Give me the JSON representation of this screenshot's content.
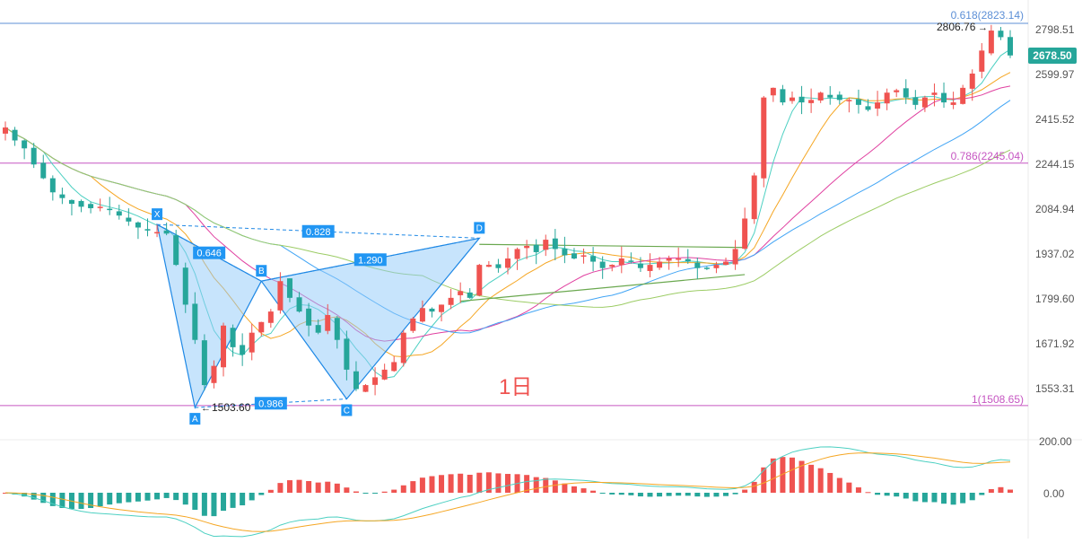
{
  "colors": {
    "up": "#ef5350",
    "down": "#26a69a",
    "harmonic_fill": "#90caf9",
    "harmonic_line": "#1e88e5",
    "fib_top": "#5c8fd6",
    "fib_mid": "#c656c2",
    "fib_bottom": "#c656c2",
    "ma_fast": "#4dd0c2",
    "ma_mid": "#f5a623",
    "ma_slow": "#e040a0",
    "ma_slower": "#42a5f5",
    "ma_slowest": "#9ccc65",
    "triangle": "#6aa84f",
    "label_bg": "#2196f3",
    "price_tag": "#26a69a",
    "annotation": "#ef5350"
  },
  "annotation_text": "1日",
  "chart_data": {
    "type": "candlestick",
    "timeframe": "1日",
    "price_axis": {
      "ticks": [
        {
          "value": 2798.51,
          "label": "2798.51"
        },
        {
          "value": 2599.97,
          "label": "2599.97"
        },
        {
          "value": 2415.52,
          "label": "2415.52"
        },
        {
          "value": 2244.15,
          "label": "2244.15"
        },
        {
          "value": 2084.94,
          "label": "2084.94"
        },
        {
          "value": 1937.02,
          "label": "1937.02"
        },
        {
          "value": 1799.6,
          "label": "1799.60"
        },
        {
          "value": 1671.92,
          "label": "1671.92"
        },
        {
          "value": 1553.31,
          "label": "1553.31"
        }
      ],
      "current_price": "2678.50",
      "log_scale": true
    },
    "fib_levels": [
      {
        "label": "0.618(2823.14)",
        "price": 2823.14
      },
      {
        "label": "0.786(2245.04)",
        "price": 2245.04
      },
      {
        "label": "1(1508.65)",
        "price": 1508.65
      }
    ],
    "price_labels": [
      {
        "text": "2806.76",
        "price": 2806.76
      },
      {
        "text": "1503.60",
        "price": 1503.6
      }
    ],
    "harmonic_pattern": {
      "points": [
        {
          "label": "X",
          "price": 2030
        },
        {
          "label": "A",
          "price": 1503.6
        },
        {
          "label": "B",
          "price": 1850
        },
        {
          "label": "C",
          "price": 1525
        },
        {
          "label": "D",
          "price": 1985
        }
      ],
      "ratios": [
        {
          "label": "0.646",
          "between": "XB"
        },
        {
          "label": "0.828",
          "between": "XD"
        },
        {
          "label": "1.290",
          "between": "BD"
        },
        {
          "label": "0.986",
          "between": "AC"
        }
      ]
    },
    "candles_close": [
      2380,
      2330,
      2300,
      2240,
      2190,
      2140,
      2120,
      2100,
      2090,
      2085,
      2090,
      2080,
      2060,
      2040,
      2020,
      2010,
      2005,
      2000,
      1900,
      1780,
      1680,
      1560,
      1610,
      1720,
      1660,
      1640,
      1700,
      1730,
      1760,
      1850,
      1800,
      1760,
      1720,
      1700,
      1750,
      1680,
      1600,
      1550,
      1560,
      1580,
      1600,
      1620,
      1700,
      1740,
      1770,
      1760,
      1780,
      1800,
      1820,
      1800,
      1900,
      1900,
      1890,
      1920,
      1950,
      1960,
      1940,
      1980,
      1950,
      1930,
      1920,
      1930,
      1910,
      1890,
      1900,
      1920,
      1910,
      1890,
      1900,
      1910,
      1920,
      1920,
      1910,
      1890,
      1890,
      1900,
      1910,
      1950,
      2050,
      2200,
      2500,
      2540,
      2480,
      2500,
      2480,
      2490,
      2520,
      2500,
      2490,
      2490,
      2470,
      2450,
      2480,
      2520,
      2530,
      2500,
      2470,
      2500,
      2520,
      2480,
      2480,
      2540,
      2600,
      2700,
      2790,
      2760,
      2678.5
    ],
    "macd_axis": {
      "ticks": [
        {
          "value": 200,
          "label": "200.00"
        },
        {
          "value": 0,
          "label": "0.00"
        }
      ]
    }
  }
}
